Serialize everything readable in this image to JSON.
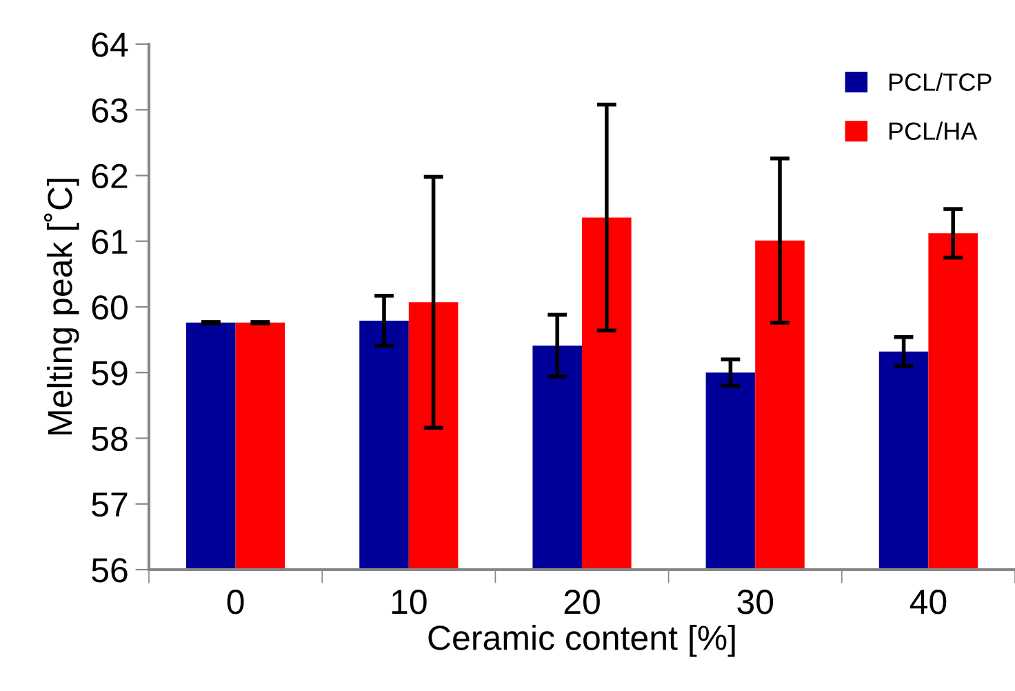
{
  "chart_data": {
    "type": "bar",
    "xlabel": "Ceramic content [%]",
    "ylabel": "Melting peak [˚C]",
    "categories": [
      "0",
      "10",
      "20",
      "30",
      "40"
    ],
    "series": [
      {
        "name": "PCL/TCP",
        "color": "#000099",
        "values": [
          59.76,
          59.79,
          59.41,
          59.0,
          59.32
        ],
        "errors": [
          0.01,
          0.38,
          0.47,
          0.2,
          0.22
        ]
      },
      {
        "name": "PCL/HA",
        "color": "#ff0000",
        "values": [
          59.76,
          60.07,
          61.36,
          61.01,
          61.12
        ],
        "errors": [
          0.01,
          1.91,
          1.72,
          1.25,
          0.37
        ]
      }
    ],
    "ylim": [
      56,
      64
    ],
    "yticks": [
      56,
      57,
      58,
      59,
      60,
      61,
      62,
      63,
      64
    ],
    "grid": false,
    "legend": "top right"
  }
}
